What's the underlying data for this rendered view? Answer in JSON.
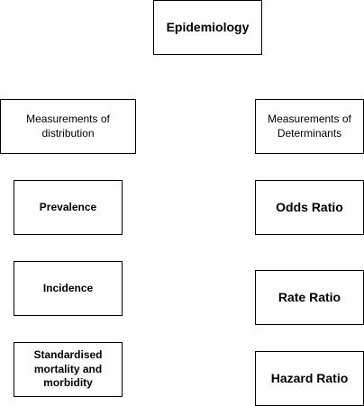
{
  "diagram": {
    "root": {
      "label": "Epidemiology"
    },
    "left_group": {
      "label": "Measurements of distribution",
      "items": [
        {
          "label": "Prevalence"
        },
        {
          "label": "Incidence"
        },
        {
          "label": "Standardised mortality and morbidity"
        }
      ]
    },
    "right_group": {
      "label": "Measurements of Determinants",
      "items": [
        {
          "label": "Odds Ratio"
        },
        {
          "label": "Rate Ratio"
        },
        {
          "label": "Hazard Ratio"
        }
      ]
    }
  }
}
